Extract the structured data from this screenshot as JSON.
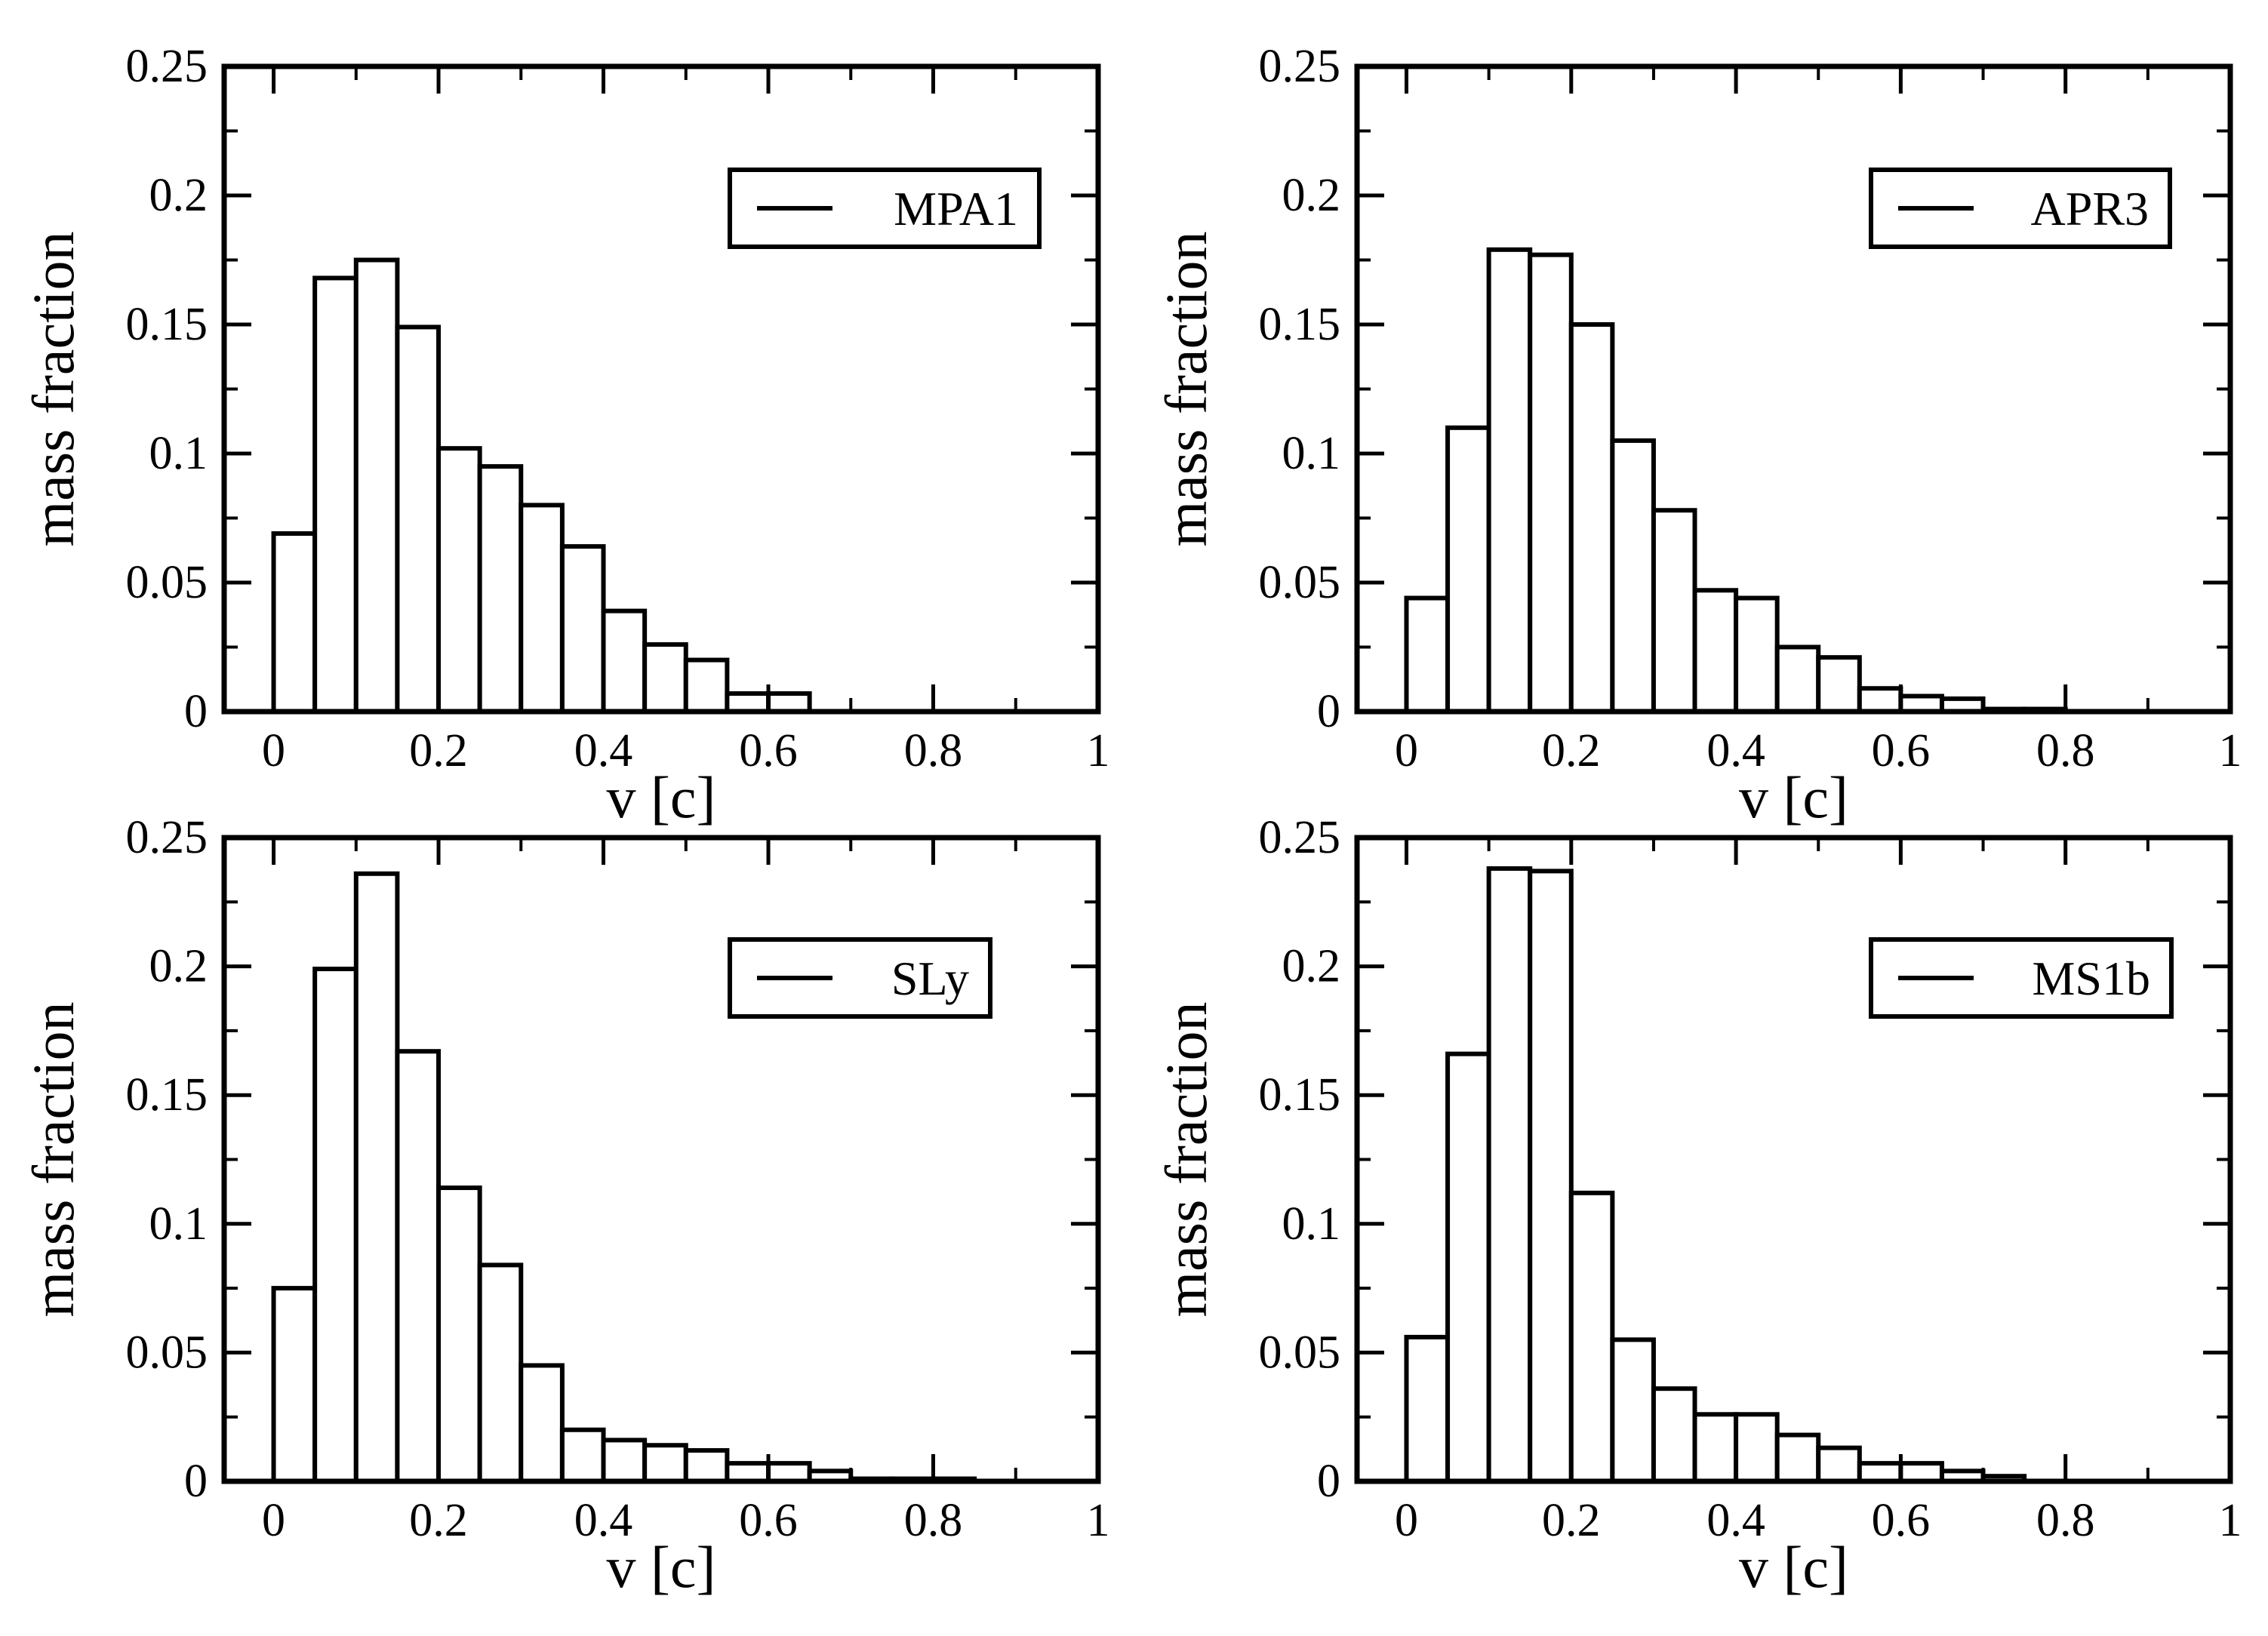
{
  "chart_data": [
    {
      "type": "bar",
      "legend": "MPA1",
      "legend_position": "top-right",
      "xlabel": "v [c]",
      "ylabel": "mass fraction",
      "xlim": [
        -0.06,
        1.0
      ],
      "ylim": [
        0,
        0.25
      ],
      "bin_width": 0.05,
      "bin_starts": [
        0,
        0.05,
        0.1,
        0.15,
        0.2,
        0.25,
        0.3,
        0.35,
        0.4,
        0.45,
        0.5,
        0.55,
        0.6,
        0.65,
        0.7,
        0.75,
        0.8,
        0.85,
        0.9,
        0.95
      ],
      "values": [
        0.069,
        0.168,
        0.175,
        0.149,
        0.102,
        0.095,
        0.08,
        0.064,
        0.039,
        0.026,
        0.02,
        0.007,
        0.007,
        0.0,
        0.0,
        0.0,
        0.0,
        0.0,
        0.0,
        0.0
      ],
      "xticks": [
        "0",
        "0.2",
        "0.4",
        "0.6",
        "0.8",
        "1"
      ],
      "yticks": [
        "0",
        "0.05",
        "0.1",
        "0.15",
        "0.2",
        "0.25"
      ]
    },
    {
      "type": "bar",
      "legend": "APR3",
      "legend_position": "top-right",
      "xlabel": "v [c]",
      "ylabel": "mass fraction",
      "xlim": [
        -0.06,
        1.0
      ],
      "ylim": [
        0,
        0.25
      ],
      "bin_width": 0.05,
      "bin_starts": [
        0,
        0.05,
        0.1,
        0.15,
        0.2,
        0.25,
        0.3,
        0.35,
        0.4,
        0.45,
        0.5,
        0.55,
        0.6,
        0.65,
        0.7,
        0.75,
        0.8,
        0.85,
        0.9,
        0.95
      ],
      "values": [
        0.044,
        0.11,
        0.179,
        0.177,
        0.15,
        0.105,
        0.078,
        0.047,
        0.044,
        0.025,
        0.021,
        0.009,
        0.006,
        0.005,
        0.001,
        0.001,
        0.0,
        0.0,
        0.0,
        0.0
      ],
      "xticks": [
        "0",
        "0.2",
        "0.4",
        "0.6",
        "0.8",
        "1"
      ],
      "yticks": [
        "0",
        "0.05",
        "0.1",
        "0.15",
        "0.2",
        "0.25"
      ]
    },
    {
      "type": "bar",
      "legend": "SLy",
      "legend_position": "top-right",
      "xlabel": "v [c]",
      "ylabel": "mass fraction",
      "xlim": [
        -0.06,
        1.0
      ],
      "ylim": [
        0,
        0.25
      ],
      "bin_width": 0.05,
      "bin_starts": [
        0,
        0.05,
        0.1,
        0.15,
        0.2,
        0.25,
        0.3,
        0.35,
        0.4,
        0.45,
        0.5,
        0.55,
        0.6,
        0.65,
        0.7,
        0.75,
        0.8,
        0.85,
        0.9,
        0.95
      ],
      "values": [
        0.075,
        0.199,
        0.236,
        0.167,
        0.114,
        0.084,
        0.045,
        0.02,
        0.016,
        0.014,
        0.012,
        0.007,
        0.007,
        0.004,
        0.001,
        0.001,
        0.001,
        0.0,
        0.0,
        0.0
      ],
      "xticks": [
        "0",
        "0.2",
        "0.4",
        "0.6",
        "0.8",
        "1"
      ],
      "yticks": [
        "0",
        "0.05",
        "0.1",
        "0.15",
        "0.2",
        "0.25"
      ]
    },
    {
      "type": "bar",
      "legend": "MS1b",
      "legend_position": "top-right",
      "xlabel": "v [c]",
      "ylabel": "mass fraction",
      "xlim": [
        -0.06,
        1.0
      ],
      "ylim": [
        0,
        0.25
      ],
      "bin_width": 0.05,
      "bin_starts": [
        0,
        0.05,
        0.1,
        0.15,
        0.2,
        0.25,
        0.3,
        0.35,
        0.4,
        0.45,
        0.5,
        0.55,
        0.6,
        0.65,
        0.7,
        0.75,
        0.8,
        0.85,
        0.9,
        0.95
      ],
      "values": [
        0.056,
        0.166,
        0.238,
        0.237,
        0.112,
        0.055,
        0.036,
        0.026,
        0.026,
        0.018,
        0.013,
        0.007,
        0.007,
        0.004,
        0.002,
        0.0,
        0.0,
        0.0,
        0.0,
        0.0
      ],
      "xticks": [
        "0",
        "0.2",
        "0.4",
        "0.6",
        "0.8",
        "1"
      ],
      "yticks": [
        "0",
        "0.05",
        "0.1",
        "0.15",
        "0.2",
        "0.25"
      ]
    }
  ]
}
